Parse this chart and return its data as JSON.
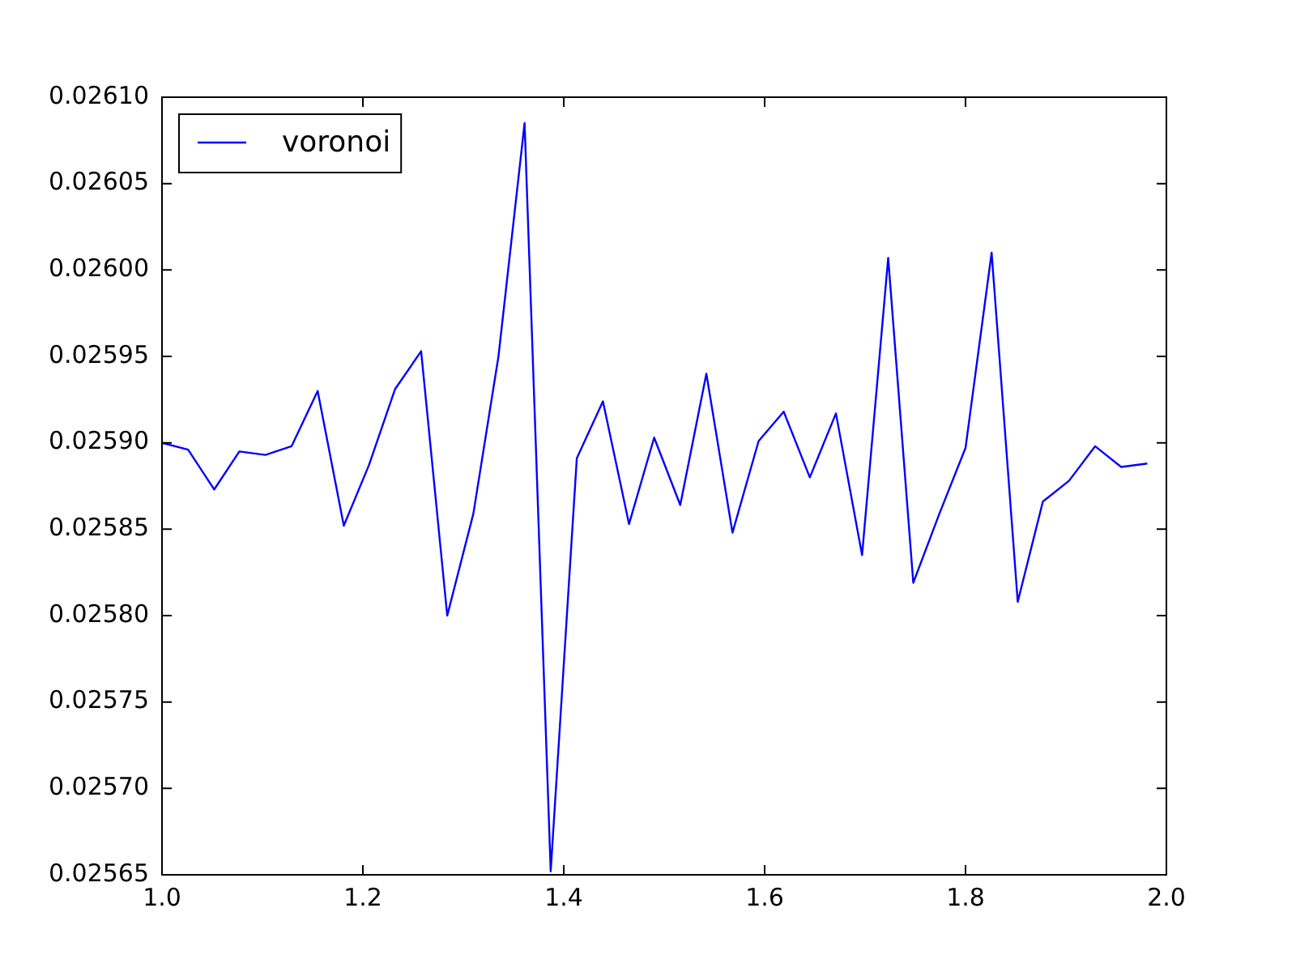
{
  "chart_data": {
    "type": "line",
    "x": [
      1.0,
      1.026,
      1.052,
      1.077,
      1.103,
      1.129,
      1.155,
      1.181,
      1.206,
      1.232,
      1.258,
      1.284,
      1.31,
      1.335,
      1.361,
      1.387,
      1.413,
      1.439,
      1.465,
      1.49,
      1.516,
      1.542,
      1.568,
      1.594,
      1.619,
      1.645,
      1.671,
      1.697,
      1.723,
      1.748,
      1.774,
      1.8,
      1.826,
      1.852,
      1.877,
      1.903,
      1.929,
      1.955,
      1.981
    ],
    "series": [
      {
        "name": "voronoi",
        "color": "#0000ff",
        "values": [
          0.0259,
          0.025896,
          0.025873,
          0.025895,
          0.025893,
          0.025898,
          0.02593,
          0.025852,
          0.025887,
          0.025931,
          0.025953,
          0.0258,
          0.025859,
          0.02595,
          0.026085,
          0.025652,
          0.025891,
          0.025924,
          0.025853,
          0.025903,
          0.025864,
          0.02594,
          0.025848,
          0.025901,
          0.025918,
          0.02588,
          0.025917,
          0.025835,
          0.026007,
          0.025819,
          0.025859,
          0.025897,
          0.02601,
          0.025808,
          0.025866,
          0.025878,
          0.025898,
          0.025886,
          0.025888
        ]
      }
    ],
    "xlim": [
      1.0,
      2.0
    ],
    "xticks": [
      {
        "value": 1.0,
        "label": "1.0"
      },
      {
        "value": 1.2,
        "label": "1.2"
      },
      {
        "value": 1.4,
        "label": "1.4"
      },
      {
        "value": 1.6,
        "label": "1.6"
      },
      {
        "value": 1.8,
        "label": "1.8"
      },
      {
        "value": 2.0,
        "label": "2.0"
      }
    ],
    "ylim": [
      0.02565,
      0.0261
    ],
    "yticks": [
      {
        "value": 0.02565,
        "label": "0.02565"
      },
      {
        "value": 0.0257,
        "label": "0.02570"
      },
      {
        "value": 0.02575,
        "label": "0.02575"
      },
      {
        "value": 0.0258,
        "label": "0.02580"
      },
      {
        "value": 0.02585,
        "label": "0.02585"
      },
      {
        "value": 0.0259,
        "label": "0.02590"
      },
      {
        "value": 0.02595,
        "label": "0.02595"
      },
      {
        "value": 0.026,
        "label": "0.02600"
      },
      {
        "value": 0.02605,
        "label": "0.02605"
      },
      {
        "value": 0.0261,
        "label": "0.02610"
      }
    ],
    "legend": "top left",
    "grid": false,
    "marker": "none",
    "line_style": "solid"
  }
}
